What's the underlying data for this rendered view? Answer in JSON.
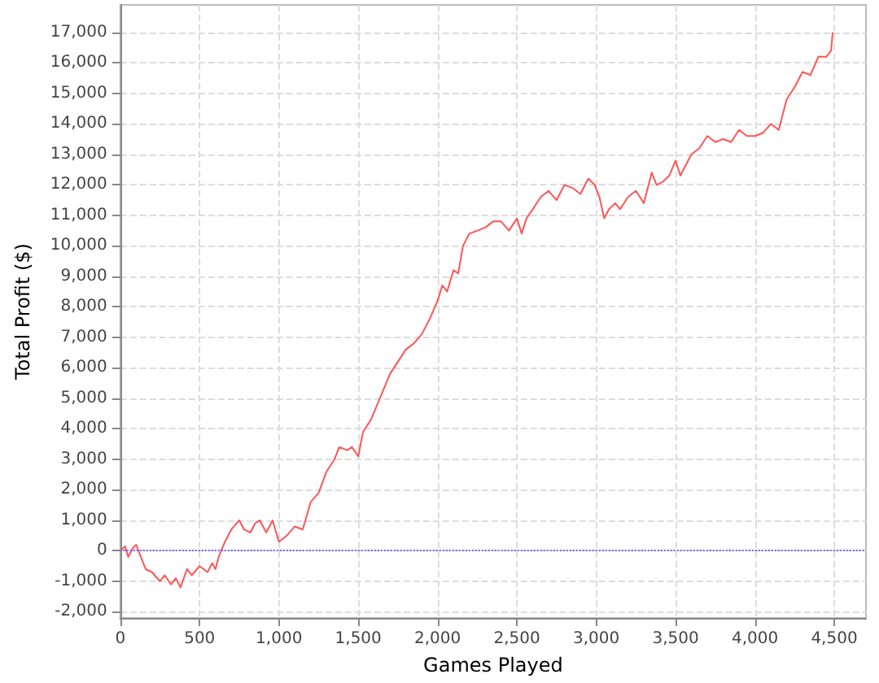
{
  "chart_data": {
    "type": "line",
    "xlabel": "Games Played",
    "ylabel": "Total Profit ($)",
    "x": [
      0,
      30,
      50,
      80,
      100,
      130,
      160,
      200,
      250,
      280,
      320,
      350,
      380,
      420,
      450,
      500,
      550,
      580,
      600,
      620,
      660,
      700,
      750,
      780,
      820,
      850,
      880,
      920,
      960,
      1000,
      1050,
      1100,
      1150,
      1200,
      1250,
      1300,
      1350,
      1380,
      1430,
      1460,
      1500,
      1530,
      1580,
      1620,
      1660,
      1700,
      1750,
      1800,
      1850,
      1900,
      1950,
      2000,
      2030,
      2060,
      2100,
      2130,
      2160,
      2200,
      2250,
      2300,
      2350,
      2400,
      2450,
      2500,
      2530,
      2560,
      2600,
      2650,
      2700,
      2750,
      2800,
      2850,
      2900,
      2950,
      2990,
      3020,
      3050,
      3080,
      3120,
      3150,
      3200,
      3250,
      3300,
      3350,
      3380,
      3420,
      3460,
      3500,
      3530,
      3560,
      3600,
      3650,
      3700,
      3750,
      3800,
      3850,
      3900,
      3950,
      4000,
      4050,
      4100,
      4150,
      4200,
      4250,
      4300,
      4350,
      4400,
      4450,
      4480,
      4490
    ],
    "series": [
      {
        "color": "#ff5555",
        "values": [
          0,
          150,
          -200,
          100,
          200,
          -200,
          -600,
          -700,
          -1000,
          -800,
          -1100,
          -900,
          -1200,
          -600,
          -800,
          -500,
          -700,
          -400,
          -600,
          -200,
          300,
          700,
          1000,
          700,
          600,
          900,
          1000,
          600,
          1000,
          300,
          500,
          800,
          700,
          1600,
          1900,
          2600,
          3000,
          3400,
          3300,
          3400,
          3100,
          3900,
          4300,
          4800,
          5300,
          5800,
          6200,
          6600,
          6800,
          7100,
          7600,
          8200,
          8700,
          8500,
          9200,
          9100,
          10000,
          10400,
          10500,
          10600,
          10800,
          10800,
          10500,
          10900,
          10400,
          10900,
          11200,
          11600,
          11800,
          11500,
          12000,
          11900,
          11700,
          12200,
          12000,
          11600,
          10900,
          11200,
          11400,
          11200,
          11600,
          11800,
          11400,
          12400,
          12000,
          12100,
          12300,
          12800,
          12300,
          12600,
          13000,
          13200,
          13600,
          13400,
          13500,
          13400,
          13800,
          13600,
          13600,
          13700,
          14000,
          13800,
          14800,
          15200,
          15700,
          15600,
          16200,
          16200,
          16400,
          17000
        ]
      }
    ],
    "xlim": [
      0,
      4700
    ],
    "xticks": [
      0,
      500,
      {
        "value": 1000,
        "label": "1,000"
      },
      {
        "value": 1500,
        "label": "1,500"
      },
      {
        "value": 2000,
        "label": "2,000"
      },
      {
        "value": 2500,
        "label": "2,500"
      },
      {
        "value": 3000,
        "label": "3,000"
      },
      {
        "value": 3500,
        "label": "3,500"
      },
      {
        "value": 4000,
        "label": "4,000"
      },
      {
        "value": 4500,
        "label": "4,500"
      }
    ],
    "ylim": [
      -2200,
      17900
    ],
    "yticks": [
      {
        "value": -2000,
        "label": "-2,000"
      },
      {
        "value": -1000,
        "label": "-1,000"
      },
      0,
      {
        "value": 1000,
        "label": "1,000"
      },
      {
        "value": 2000,
        "label": "2,000"
      },
      {
        "value": 3000,
        "label": "3,000"
      },
      {
        "value": 4000,
        "label": "4,000"
      },
      {
        "value": 5000,
        "label": "5,000"
      },
      {
        "value": 6000,
        "label": "6,000"
      },
      {
        "value": 7000,
        "label": "7,000"
      },
      {
        "value": 8000,
        "label": "8,000"
      },
      {
        "value": 9000,
        "label": "9,000"
      },
      {
        "value": 10000,
        "label": "10,000"
      },
      {
        "value": 11000,
        "label": "11,000"
      },
      {
        "value": 12000,
        "label": "12,000"
      },
      {
        "value": 13000,
        "label": "13,000"
      },
      {
        "value": 14000,
        "label": "14,000"
      },
      {
        "value": 15000,
        "label": "15,000"
      },
      {
        "value": 16000,
        "label": "16,000"
      },
      {
        "value": 17000,
        "label": "17,000"
      }
    ],
    "grid": true,
    "marker": "none",
    "line_style": "solid",
    "ref_lines": [
      {
        "axis": "y",
        "value": 0,
        "color": "#6666ff",
        "line_style": "dotted"
      }
    ]
  }
}
